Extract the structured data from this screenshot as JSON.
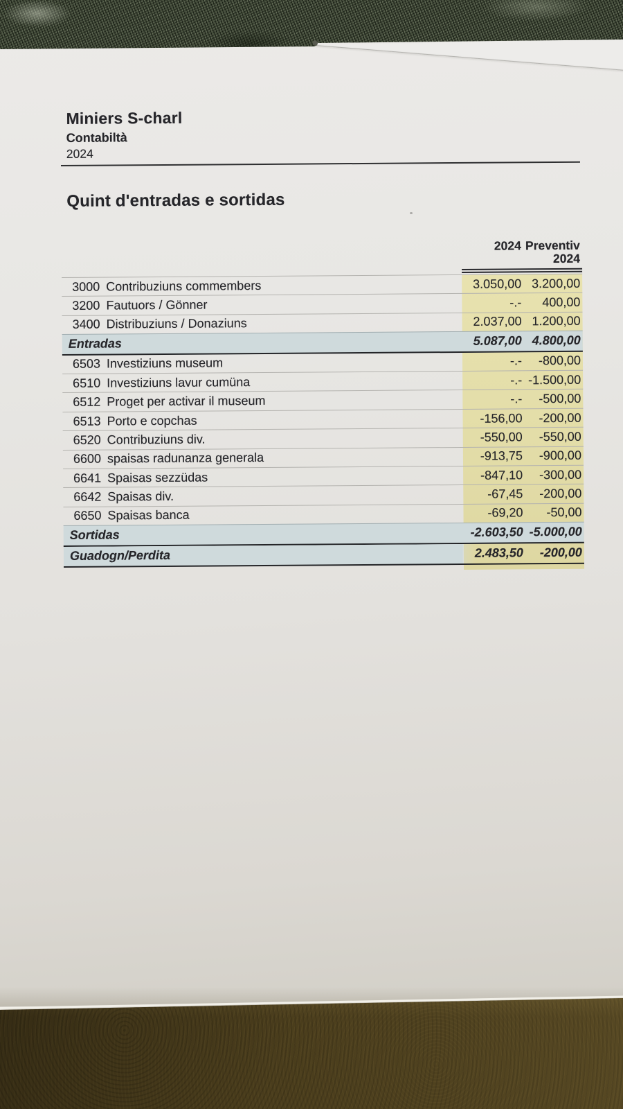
{
  "scene": {
    "top_surface": "green granite countertop",
    "bottom_surface": "olive leather desk pad",
    "colors": {
      "marble": "#49523f",
      "leather": "#4a3d1c",
      "paper": "#e7e6e3",
      "value_column_highlight": "#e3dda8",
      "total_row_background": "#cfdadc",
      "ink": "#26262a"
    }
  },
  "document": {
    "org_name": "Miniers S-charl",
    "subtitle": "Contabiltà",
    "year": "2024",
    "report_title": "Quint d'entradas e sortidas"
  },
  "table": {
    "columns": {
      "actual_label": "2024",
      "budget_label_line1": "Preventiv",
      "budget_label_line2": "2024"
    },
    "rows": [
      {
        "account": "3000",
        "label": "Contribuziuns commembers",
        "actual": "3.050,00",
        "budget": "3.200,00",
        "type": "income"
      },
      {
        "account": "3200",
        "label": "Fautuors / Gönner",
        "actual": "-.-",
        "budget": "400,00",
        "type": "income"
      },
      {
        "account": "3400",
        "label": "Distribuziuns / Donaziuns",
        "actual": "2.037,00",
        "budget": "1.200,00",
        "type": "income"
      },
      {
        "account": "",
        "label": "Entradas",
        "actual": "5.087,00",
        "budget": "4.800,00",
        "type": "total"
      },
      {
        "account": "6503",
        "label": "Investiziuns museum",
        "actual": "-.-",
        "budget": "-800,00",
        "type": "expense"
      },
      {
        "account": "6510",
        "label": "Investiziuns lavur cumüna",
        "actual": "-.-",
        "budget": "-1.500,00",
        "type": "expense"
      },
      {
        "account": "6512",
        "label": "Proget per activar il museum",
        "actual": "-.-",
        "budget": "-500,00",
        "type": "expense"
      },
      {
        "account": "6513",
        "label": "Porto e copchas",
        "actual": "-156,00",
        "budget": "-200,00",
        "type": "expense"
      },
      {
        "account": "6520",
        "label": "Contribuziuns div.",
        "actual": "-550,00",
        "budget": "-550,00",
        "type": "expense"
      },
      {
        "account": "6600",
        "label": "spaisas radunanza generala",
        "actual": "-913,75",
        "budget": "-900,00",
        "type": "expense"
      },
      {
        "account": "6641",
        "label": "Spaisas sezzüdas",
        "actual": "-847,10",
        "budget": "-300,00",
        "type": "expense"
      },
      {
        "account": "6642",
        "label": "Spaisas div.",
        "actual": "-67,45",
        "budget": "-200,00",
        "type": "expense"
      },
      {
        "account": "6650",
        "label": "Spaisas banca",
        "actual": "-69,20",
        "budget": "-50,00",
        "type": "expense"
      },
      {
        "account": "",
        "label": "Sortidas",
        "actual": "-2.603,50",
        "budget": "-5.000,00",
        "type": "total"
      },
      {
        "account": "",
        "label": "Guadogn/Perdita",
        "actual": "2.483,50",
        "budget": "-200,00",
        "type": "grand-total"
      }
    ]
  }
}
